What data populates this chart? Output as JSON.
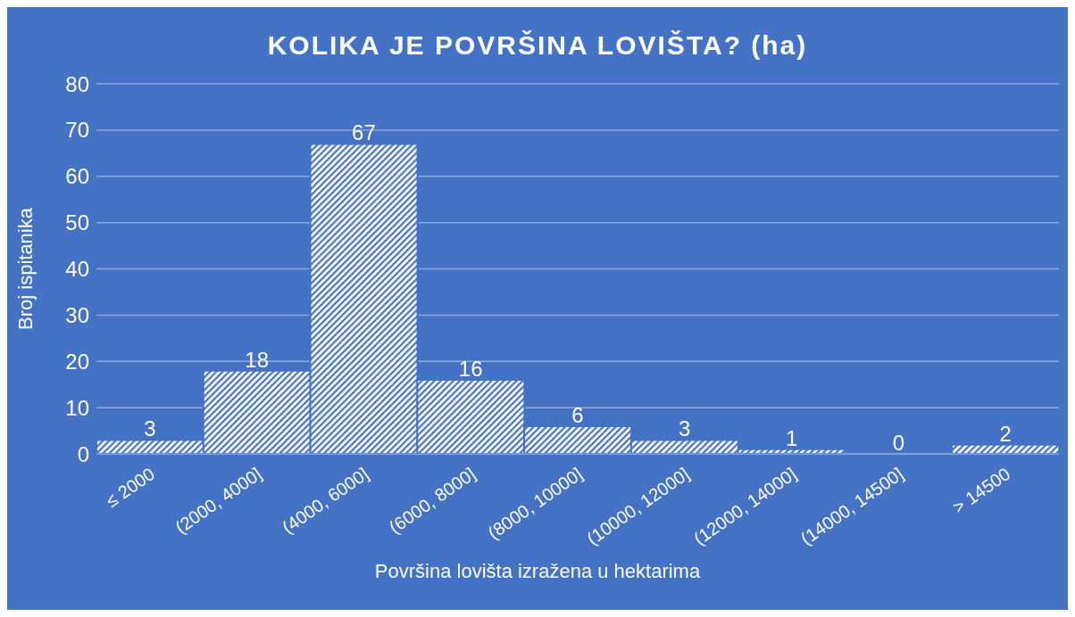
{
  "chart_data": {
    "type": "bar",
    "title": "KOLIKA JE POVRŠINA LOVIŠTA? (ha)",
    "xlabel": "Površina lovišta izražena u hektarima",
    "ylabel": "Broj ispitanika",
    "categories": [
      "≤ 2000",
      "(2000, 4000]",
      "(4000, 6000]",
      "(6000, 8000]",
      "(8000, 10000]",
      "(10000, 12000]",
      "(12000, 14000]",
      "(14000, 14500]",
      "> 14500"
    ],
    "values": [
      3,
      18,
      67,
      16,
      6,
      3,
      1,
      0,
      2
    ],
    "color": "#4472c4",
    "ylim": [
      0,
      80
    ],
    "yticks": [
      0,
      10,
      20,
      30,
      40,
      50,
      60,
      70,
      80
    ],
    "grid": "y",
    "data_labels": true
  }
}
